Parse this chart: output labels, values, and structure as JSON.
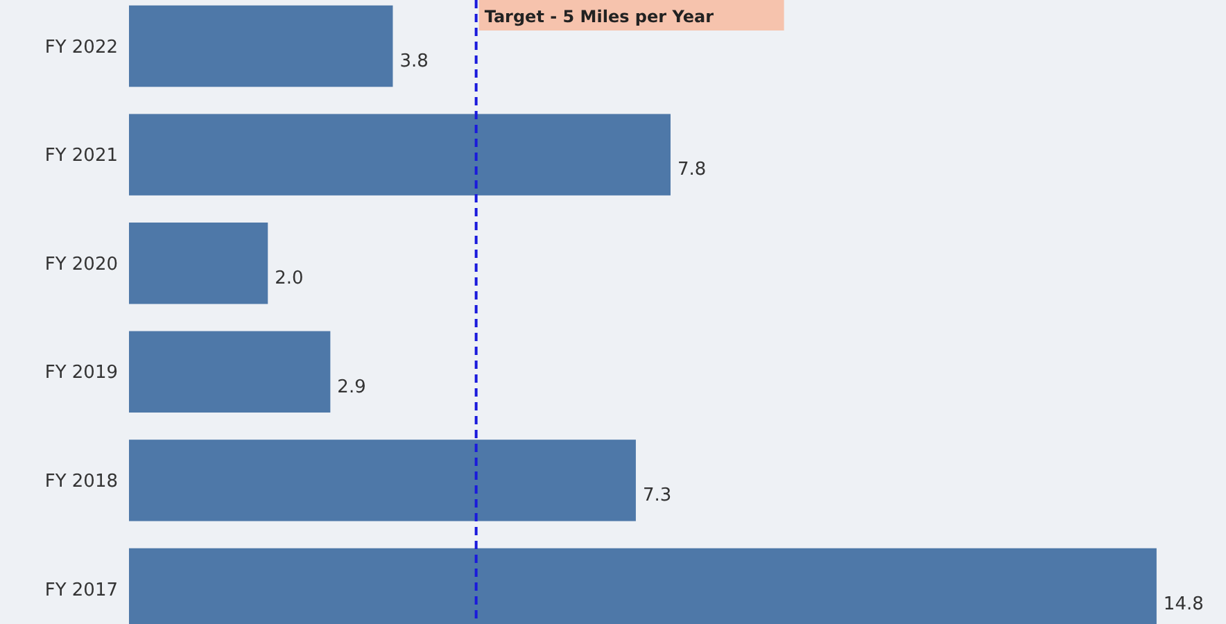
{
  "chart_data": {
    "type": "bar",
    "orientation": "horizontal",
    "categories": [
      "FY 2022",
      "FY 2021",
      "FY 2020",
      "FY 2019",
      "FY 2018",
      "FY 2017"
    ],
    "values": [
      3.8,
      7.8,
      2.0,
      2.9,
      7.3,
      14.8
    ],
    "value_labels": [
      "3.8",
      "7.8",
      "2.0",
      "2.9",
      "7.3",
      "14.8"
    ],
    "color": "#4e78a8",
    "xlim": [
      0,
      15.8
    ],
    "tick_labels": "y",
    "ref_lines": [
      {
        "axis": "x",
        "value": 5,
        "label": "Target - 5 Miles per Year",
        "color": "#1a1adc",
        "line_style": "dashed"
      }
    ]
  }
}
